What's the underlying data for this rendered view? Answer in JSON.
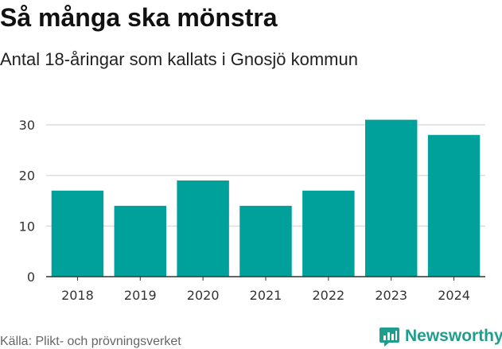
{
  "header": {
    "title": "Så många ska mönstra",
    "subtitle": "Antal 18-åringar som kallats i Gnosjö kommun"
  },
  "chart_data": {
    "type": "bar",
    "title": "Så många ska mönstra",
    "subtitle": "Antal 18-åringar som kallats i Gnosjö kommun",
    "categories": [
      "2018",
      "2019",
      "2020",
      "2021",
      "2022",
      "2023",
      "2024"
    ],
    "values": [
      17,
      14,
      19,
      14,
      17,
      31,
      28
    ],
    "ylim": [
      0,
      30
    ],
    "yticks": [
      "0",
      "10",
      "20",
      "30"
    ],
    "grid": true,
    "bar_color": "#00a19a"
  },
  "footer": {
    "source": "Källa: Plikt- och prövningsverket",
    "brand": "Newsworthy",
    "brand_color": "#1f9e8f"
  }
}
